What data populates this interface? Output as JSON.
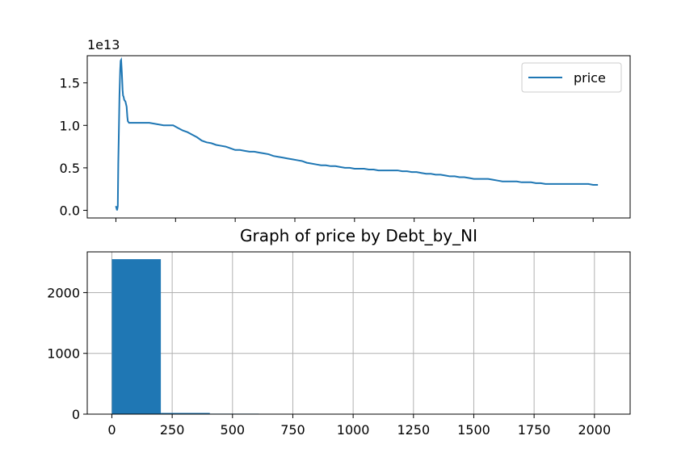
{
  "chart_data": [
    {
      "type": "line",
      "offset_text": "1e13",
      "ylim": [
        -0.09,
        1.82
      ],
      "yticks": [
        0.0,
        0.5,
        1.0,
        1.5
      ],
      "ytick_labels": [
        "0.0",
        "0.5",
        "1.0",
        "1.5"
      ],
      "xlim": [
        -120,
        2155
      ],
      "xticks": [
        0,
        250,
        500,
        750,
        1000,
        1250,
        1500,
        1750,
        2000
      ],
      "legend": {
        "position": "upper-right",
        "entries": [
          {
            "label": "price",
            "color": "#1f77b4"
          }
        ]
      },
      "series": [
        {
          "name": "price",
          "color": "#1f77b4",
          "x": [
            0,
            5,
            8,
            10,
            12,
            15,
            18,
            20,
            22,
            25,
            28,
            30,
            32,
            35,
            40,
            45,
            48,
            50,
            55,
            60,
            65,
            140,
            200,
            240,
            260,
            280,
            300,
            320,
            340,
            360,
            380,
            400,
            420,
            440,
            460,
            480,
            500,
            520,
            540,
            560,
            580,
            600,
            620,
            640,
            660,
            680,
            700,
            720,
            740,
            760,
            780,
            800,
            820,
            840,
            860,
            880,
            900,
            920,
            940,
            960,
            980,
            1000,
            1020,
            1040,
            1060,
            1080,
            1100,
            1120,
            1140,
            1160,
            1180,
            1200,
            1220,
            1240,
            1260,
            1280,
            1300,
            1320,
            1340,
            1360,
            1380,
            1400,
            1420,
            1440,
            1460,
            1480,
            1500,
            1520,
            1540,
            1560,
            1580,
            1600,
            1620,
            1640,
            1660,
            1680,
            1700,
            1720,
            1740,
            1760,
            1780,
            1800,
            1820,
            1840,
            1860,
            1880,
            1900,
            1920,
            1940,
            1960,
            1980,
            2000,
            2020
          ],
          "values": [
            0.05,
            0.0,
            0.05,
            0.55,
            0.85,
            1.35,
            1.65,
            1.76,
            1.77,
            1.62,
            1.42,
            1.35,
            1.34,
            1.3,
            1.28,
            1.22,
            1.1,
            1.05,
            1.03,
            1.03,
            1.03,
            1.03,
            1.0,
            1.0,
            0.97,
            0.94,
            0.92,
            0.89,
            0.86,
            0.82,
            0.8,
            0.79,
            0.77,
            0.76,
            0.75,
            0.73,
            0.71,
            0.71,
            0.7,
            0.69,
            0.69,
            0.68,
            0.67,
            0.66,
            0.64,
            0.63,
            0.62,
            0.61,
            0.6,
            0.59,
            0.58,
            0.56,
            0.55,
            0.54,
            0.53,
            0.53,
            0.52,
            0.52,
            0.51,
            0.5,
            0.5,
            0.49,
            0.49,
            0.49,
            0.48,
            0.48,
            0.47,
            0.47,
            0.47,
            0.47,
            0.47,
            0.46,
            0.46,
            0.45,
            0.45,
            0.44,
            0.43,
            0.43,
            0.42,
            0.42,
            0.41,
            0.4,
            0.4,
            0.39,
            0.39,
            0.38,
            0.37,
            0.37,
            0.37,
            0.37,
            0.36,
            0.35,
            0.34,
            0.34,
            0.34,
            0.34,
            0.33,
            0.33,
            0.33,
            0.32,
            0.32,
            0.31,
            0.31,
            0.31,
            0.31,
            0.31,
            0.31,
            0.31,
            0.31,
            0.31,
            0.31,
            0.3,
            0.3
          ]
        }
      ]
    },
    {
      "type": "bar",
      "title": "Graph of price by Debt_by_NI",
      "grid": true,
      "xlim": [
        -102,
        2148
      ],
      "ylim": [
        0,
        2670
      ],
      "xticks": [
        0,
        250,
        500,
        750,
        1000,
        1250,
        1500,
        1750,
        2000
      ],
      "xtick_labels": [
        "0",
        "250",
        "500",
        "750",
        "1000",
        "1250",
        "1500",
        "1750",
        "2000"
      ],
      "yticks": [
        0,
        1000,
        2000
      ],
      "ytick_labels": [
        "0",
        "1000",
        "2000"
      ],
      "color": "#1f77b4",
      "bins": [
        {
          "x0": 0,
          "x1": 203,
          "value": 2550
        },
        {
          "x0": 203,
          "x1": 406,
          "value": 20
        },
        {
          "x0": 406,
          "x1": 609,
          "value": 8
        },
        {
          "x0": 609,
          "x1": 812,
          "value": 6
        }
      ]
    }
  ]
}
